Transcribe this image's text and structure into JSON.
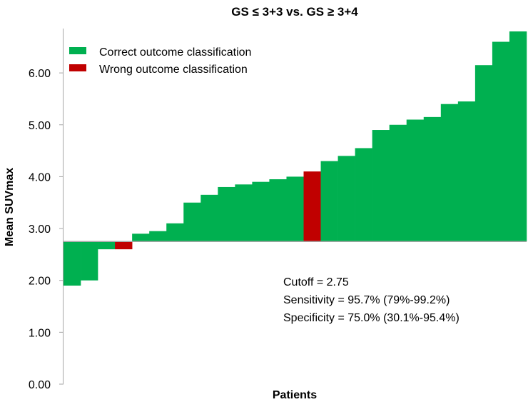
{
  "chart_data": {
    "type": "bar",
    "title": "GS ≤ 3+3 vs. GS ≥ 3+4",
    "xlabel": "Patients",
    "ylabel": "Mean SUVmax",
    "ylim": [
      0,
      6.8
    ],
    "yticks": [
      "0.00",
      "1.00",
      "2.00",
      "3.00",
      "4.00",
      "5.00",
      "6.00"
    ],
    "baseline": 2.75,
    "grid": false,
    "legend_position": "top-left",
    "legend": [
      {
        "label": "Correct outcome classification",
        "color": "#00B050"
      },
      {
        "label": "Wrong outcome classification",
        "color": "#C00000"
      }
    ],
    "values": [
      1.9,
      2.0,
      2.6,
      2.6,
      2.9,
      2.95,
      3.1,
      3.5,
      3.65,
      3.8,
      3.85,
      3.9,
      3.95,
      4.0,
      4.1,
      4.3,
      4.4,
      4.55,
      4.9,
      5.0,
      5.1,
      5.15,
      5.4,
      5.45,
      6.15,
      6.6,
      6.8
    ],
    "classification": [
      "correct",
      "correct",
      "correct",
      "wrong",
      "correct",
      "correct",
      "correct",
      "correct",
      "correct",
      "correct",
      "correct",
      "correct",
      "correct",
      "correct",
      "wrong",
      "correct",
      "correct",
      "correct",
      "correct",
      "correct",
      "correct",
      "correct",
      "correct",
      "correct",
      "correct",
      "correct",
      "correct"
    ],
    "annotations": {
      "cutoff": "Cutoff = 2.75",
      "sensitivity": "Sensitivity =  95.7% (79%-99.2%)",
      "specificity": "Specificity =  75.0% (30.1%-95.4%)"
    }
  }
}
